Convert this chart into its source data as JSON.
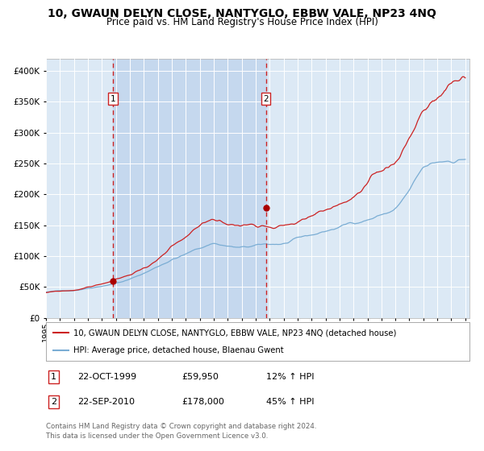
{
  "title": "10, GWAUN DELYN CLOSE, NANTYGLO, EBBW VALE, NP23 4NQ",
  "subtitle": "Price paid vs. HM Land Registry's House Price Index (HPI)",
  "title_fontsize": 10,
  "subtitle_fontsize": 8.5,
  "bg_color": "#dce9f5",
  "sale1_date": 1999.81,
  "sale1_price": 59950,
  "sale2_date": 2010.73,
  "sale2_price": 178000,
  "legend_line1": "10, GWAUN DELYN CLOSE, NANTYGLO, EBBW VALE, NP23 4NQ (detached house)",
  "legend_line2": "HPI: Average price, detached house, Blaenau Gwent",
  "footer": "Contains HM Land Registry data © Crown copyright and database right 2024.\nThis data is licensed under the Open Government Licence v3.0.",
  "table_row1_label": "1",
  "table_row1_date": "22-OCT-1999",
  "table_row1_price": "£59,950",
  "table_row1_hpi": "12% ↑ HPI",
  "table_row2_label": "2",
  "table_row2_date": "22-SEP-2010",
  "table_row2_price": "£178,000",
  "table_row2_hpi": "45% ↑ HPI",
  "hpi_color": "#7aadd4",
  "price_color": "#cc2222",
  "marker_color": "#aa0000",
  "dashed_color": "#cc2222",
  "shaded_color": "#c5d8ee",
  "ymax": 420000,
  "ymin": 0,
  "xmin": 1995,
  "xmax": 2025.3
}
